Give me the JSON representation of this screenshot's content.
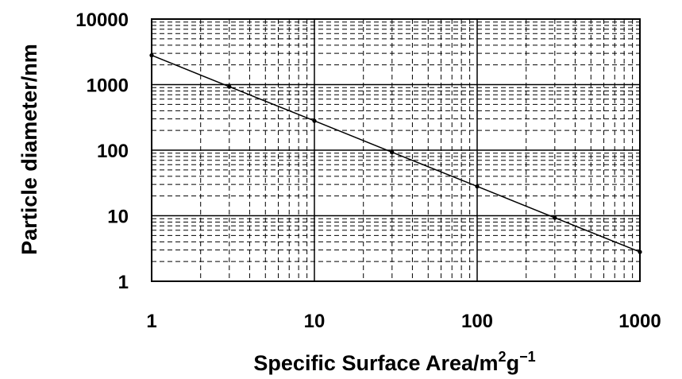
{
  "chart_data": {
    "type": "line",
    "title": "",
    "xlabel": "Specific Surface Area/m",
    "xlabel_sup1": "2",
    "xlabel_mid": "g",
    "xlabel_sup2": "−1",
    "ylabel": "Particle diameter/nm",
    "x_scale": "log",
    "y_scale": "log",
    "xlim": [
      1,
      1000
    ],
    "ylim": [
      1,
      10000
    ],
    "x_ticks": [
      "1",
      "10",
      "100",
      "1000"
    ],
    "y_ticks": [
      "1",
      "10",
      "100",
      "1000",
      "10000"
    ],
    "grid": true,
    "legend": "none",
    "series": [
      {
        "x": [
          1,
          3,
          10,
          30,
          100,
          300,
          1000
        ],
        "y": [
          2800,
          930,
          280,
          93,
          28,
          9.3,
          2.8
        ],
        "color": "#000000"
      }
    ]
  }
}
